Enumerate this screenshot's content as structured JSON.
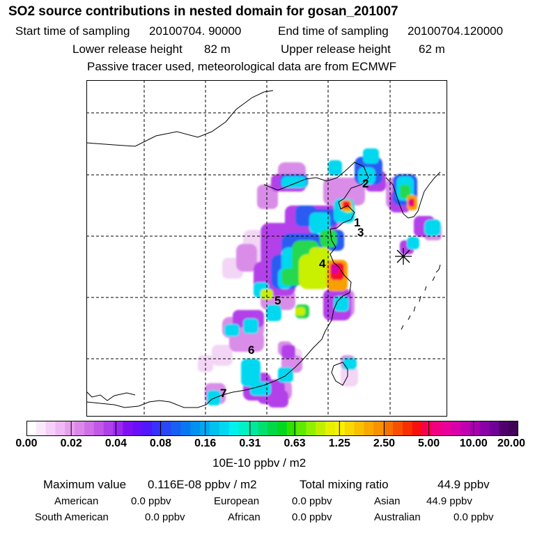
{
  "title": "SO2 source contributions in nested domain for gosan_201007",
  "header": {
    "start_label": "Start time of sampling",
    "start_value": "20100704. 90000",
    "end_label": "End time of sampling",
    "end_value": "20100704.120000",
    "lower_label": "Lower release height",
    "lower_value": "82 m",
    "upper_label": "Upper release height",
    "upper_value": "62 m",
    "tracer_note": "Passive tracer used, meteorological data are from ECMWF"
  },
  "chart_data": {
    "type": "heatmap",
    "title": "SO2 source contributions in nested domain for gosan_201007",
    "region_labels": [
      "1",
      "2",
      "3",
      "4",
      "5",
      "6",
      "7"
    ],
    "receptor_marker": "asterisk (Gosan)",
    "colorbar": {
      "ticks": [
        "0.00",
        "0.02",
        "0.04",
        "0.08",
        "0.16",
        "0.31",
        "0.63",
        "1.25",
        "2.50",
        "5.00",
        "10.00",
        "20.00"
      ],
      "unit": "10E-10 ppbv / m2",
      "colors": [
        "#ffffff",
        "#fce8fc",
        "#f6d0f8",
        "#f0b8f4",
        "#e6a0ee",
        "#dc88e8",
        "#d070e6",
        "#c258e6",
        "#b040ea",
        "#9a28ee",
        "#8010f4",
        "#6a10f8",
        "#5018fc",
        "#3830fc",
        "#2848f8",
        "#1860f4",
        "#0878f0",
        "#0090f0",
        "#00a8f0",
        "#00c0f0",
        "#00d8f0",
        "#00f0f0",
        "#00f0c8",
        "#00e8a0",
        "#00e070",
        "#00d848",
        "#00d820",
        "#30e000",
        "#60e800",
        "#90f000",
        "#c0f000",
        "#e8f000",
        "#f8f000",
        "#f8d800",
        "#f8c000",
        "#f8a800",
        "#f89000",
        "#f87000",
        "#f85000",
        "#f83000",
        "#f81010",
        "#f80050",
        "#f00080",
        "#e80098",
        "#d800a8",
        "#c000b0",
        "#a800b0",
        "#8c00a8",
        "#700098",
        "#50006c",
        "#400058"
      ]
    }
  },
  "stats": {
    "max_label": "Maximum value",
    "max_value": "0.116E-08 ppbv / m2",
    "total_label": "Total mixing ratio",
    "total_value": "44.9 ppbv",
    "regions": [
      {
        "name": "American",
        "value": "0.0 ppbv"
      },
      {
        "name": "European",
        "value": "0.0 ppbv"
      },
      {
        "name": "Asian",
        "value": "44.9 ppbv"
      },
      {
        "name": "South American",
        "value": "0.0 ppbv"
      },
      {
        "name": "African",
        "value": "0.0 ppbv"
      },
      {
        "name": "Australian",
        "value": "0.0 ppbv"
      }
    ]
  }
}
